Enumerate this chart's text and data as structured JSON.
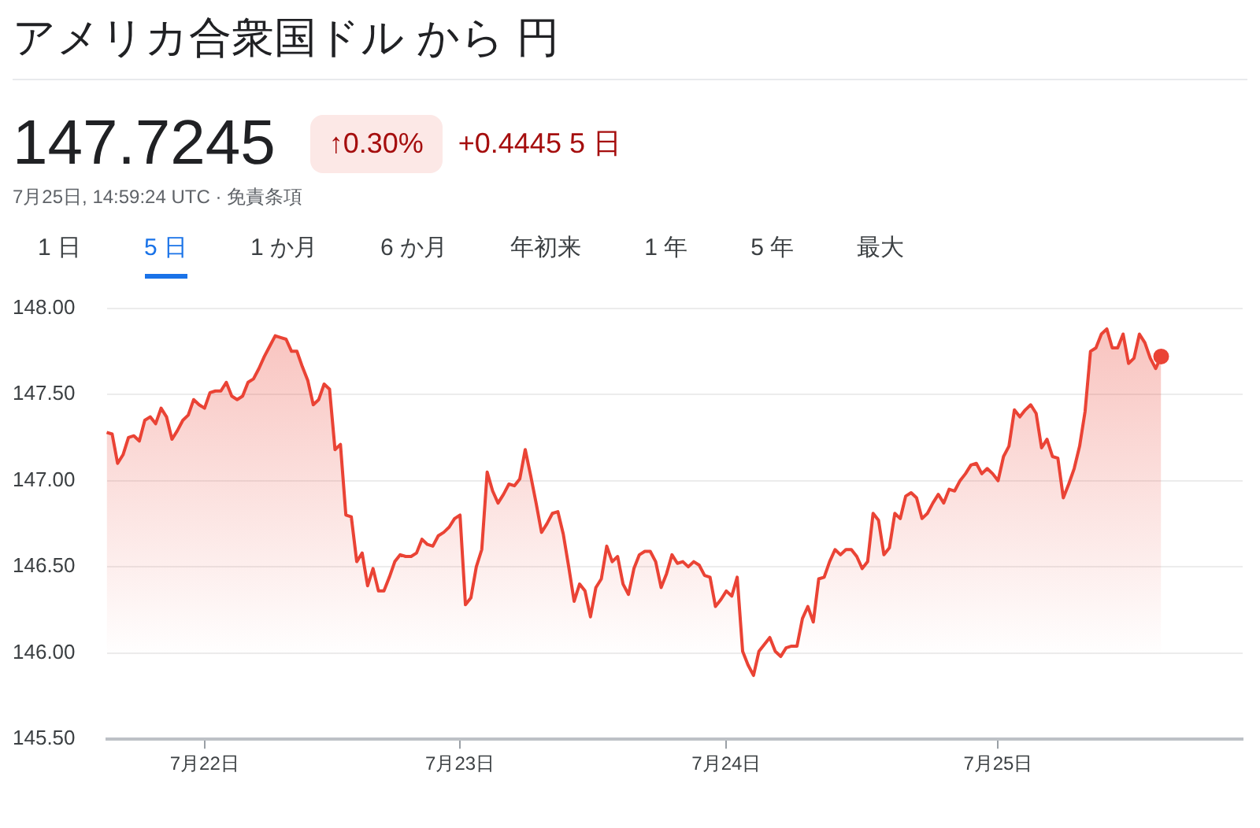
{
  "chart_data": {
    "type": "area",
    "title": "アメリカ合衆国ドル から 円",
    "annotations": [
      "147.7245",
      "↑0.30%",
      "+0.4445 5 日",
      "7月25日, 14:59:24 UTC · 免責条項",
      "1 日",
      "5 日",
      "1 か月",
      "6 か月",
      "年初来",
      "1 年",
      "5 年",
      "最大"
    ],
    "color": "#ea4335",
    "categories": [
      null,
      null,
      null,
      null,
      null,
      null,
      null,
      null,
      null,
      null,
      null,
      null,
      null,
      null,
      null,
      null,
      null,
      null,
      "7月22日",
      null,
      null,
      null,
      null,
      null,
      null,
      null,
      null,
      null,
      null,
      null,
      null,
      null,
      null,
      null,
      null,
      null,
      null,
      null,
      null,
      null,
      null,
      null,
      null,
      null,
      null,
      null,
      null,
      null,
      null,
      null,
      null,
      null,
      null,
      null,
      null,
      null,
      null,
      null,
      null,
      null,
      null,
      null,
      null,
      null,
      null,
      "7月23日",
      null,
      null,
      null,
      null,
      null,
      null,
      null,
      null,
      null,
      null,
      null,
      null,
      null,
      null,
      null,
      null,
      null,
      null,
      null,
      null,
      null,
      null,
      null,
      null,
      null,
      null,
      null,
      null,
      null,
      null,
      null,
      null,
      null,
      null,
      null,
      null,
      null,
      null,
      null,
      null,
      null,
      null,
      null,
      null,
      null,
      null,
      null,
      null,
      "7月24日",
      null,
      null,
      null,
      null,
      null,
      null,
      null,
      null,
      null,
      null,
      null,
      null,
      null,
      null,
      null,
      null,
      null,
      null,
      null,
      null,
      null,
      null,
      null,
      null,
      null,
      null,
      null,
      null,
      null,
      null,
      null,
      null,
      null,
      null,
      null,
      null,
      null,
      null,
      null,
      null,
      null,
      null,
      null,
      null,
      null,
      null,
      null,
      null,
      null,
      "7月25日",
      null,
      null,
      null,
      null,
      null,
      null,
      null,
      null,
      null,
      null,
      null,
      null,
      null,
      null,
      null,
      null,
      null,
      null,
      null,
      null,
      null,
      null,
      null,
      null,
      null,
      null,
      null,
      null,
      null,
      null,
      null,
      null,
      null,
      null,
      null,
      null,
      null,
      null,
      null,
      null,
      null,
      null,
      null,
      null,
      null
    ],
    "values": [
      147.28,
      147.27,
      147.1,
      147.15,
      147.25,
      147.26,
      147.23,
      147.35,
      147.37,
      147.33,
      147.42,
      147.37,
      147.24,
      147.29,
      147.35,
      147.38,
      147.47,
      147.44,
      147.42,
      147.51,
      147.52,
      147.52,
      147.57,
      147.49,
      147.47,
      147.49,
      147.57,
      147.59,
      147.65,
      147.72,
      147.78,
      147.84,
      147.83,
      147.82,
      147.75,
      147.75,
      147.66,
      147.58,
      147.44,
      147.47,
      147.56,
      147.53,
      147.18,
      147.21,
      146.8,
      146.79,
      146.53,
      146.58,
      146.39,
      146.49,
      146.36,
      146.36,
      146.44,
      146.53,
      146.57,
      146.56,
      146.56,
      146.58,
      146.66,
      146.63,
      146.62,
      146.68,
      146.7,
      146.73,
      146.78,
      146.8,
      146.28,
      146.32,
      146.5,
      146.6,
      147.05,
      146.94,
      146.87,
      146.92,
      146.98,
      146.97,
      147.01,
      147.18,
      147.03,
      146.87,
      146.7,
      146.75,
      146.81,
      146.82,
      146.69,
      146.5,
      146.3,
      146.4,
      146.36,
      146.21,
      146.38,
      146.43,
      146.62,
      146.53,
      146.56,
      146.4,
      146.34,
      146.49,
      146.57,
      146.59,
      146.59,
      146.53,
      146.38,
      146.46,
      146.57,
      146.52,
      146.53,
      146.5,
      146.53,
      146.51,
      146.45,
      146.44,
      146.27,
      146.31,
      146.36,
      146.33,
      146.44,
      146.01,
      145.93,
      145.87,
      146.01,
      146.05,
      146.09,
      146.01,
      145.98,
      146.03,
      146.04,
      146.04,
      146.2,
      146.27,
      146.18,
      146.43,
      146.44,
      146.53,
      146.6,
      146.57,
      146.6,
      146.6,
      146.56,
      146.49,
      146.53,
      146.81,
      146.77,
      146.57,
      146.61,
      146.81,
      146.78,
      146.91,
      146.93,
      146.9,
      146.78,
      146.81,
      146.87,
      146.92,
      146.87,
      146.95,
      146.94,
      147.0,
      147.04,
      147.09,
      147.1,
      147.04,
      147.07,
      147.04,
      147.0,
      147.14,
      147.2,
      147.41,
      147.37,
      147.41,
      147.44,
      147.39,
      147.19,
      147.24,
      147.14,
      147.13,
      146.9,
      146.98,
      147.07,
      147.2,
      147.4,
      147.75,
      147.77,
      147.85,
      147.88,
      147.77,
      147.77,
      147.85,
      147.68,
      147.71,
      147.85,
      147.8,
      147.71,
      147.65,
      147.72,
      null,
      null,
      null,
      null,
      null,
      null,
      null,
      null,
      null,
      null,
      null,
      null,
      null,
      null,
      null
    ],
    "ylim": [
      145.5,
      148.0
    ],
    "yticks": [
      {
        "value": 145.5,
        "label": "145.50"
      },
      {
        "value": 146,
        "label": "146.00"
      },
      {
        "value": 146.5,
        "label": "146.50"
      },
      {
        "value": 147,
        "label": "147.00"
      },
      {
        "value": 147.5,
        "label": "147.50"
      },
      {
        "value": 148,
        "label": "148.00"
      }
    ],
    "grid": "y",
    "legend": false,
    "marker": "none",
    "line_style": "solid"
  }
}
